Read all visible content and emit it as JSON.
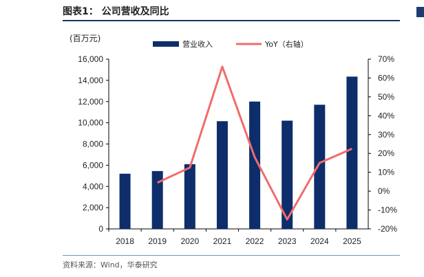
{
  "figure_title": "图表1：  公司营收及同比",
  "unit_label": "(百万元)",
  "source_text": "资料来源：Wind，华泰研究",
  "colors": {
    "bar": "#0e2d6b",
    "line": "#f26b6b",
    "title_rule": "#16346b"
  },
  "chart_data": {
    "type": "bar+line",
    "categories": [
      "2018",
      "2019",
      "2020",
      "2021",
      "2022",
      "2023",
      "2024",
      "2025"
    ],
    "series": [
      {
        "name": "营业收入",
        "type": "bar",
        "axis": "left",
        "values": [
          5200,
          5450,
          6100,
          10150,
          12000,
          10200,
          11700,
          14350
        ]
      },
      {
        "name": "YoY（右轴）",
        "type": "line",
        "axis": "right",
        "values": [
          null,
          4.5,
          12.5,
          66,
          18,
          -15,
          15,
          22.5
        ]
      }
    ],
    "ylim_left": [
      0,
      16000
    ],
    "ylim_right": [
      -20,
      70
    ],
    "yticks_left": [
      "0",
      "2,000",
      "4,000",
      "6,000",
      "8,000",
      "10,000",
      "12,000",
      "14,000",
      "16,000"
    ],
    "yticks_right": [
      "-20%",
      "-10%",
      "0%",
      "10%",
      "20%",
      "30%",
      "40%",
      "50%",
      "60%",
      "70%"
    ],
    "legend_position": "top-center"
  }
}
